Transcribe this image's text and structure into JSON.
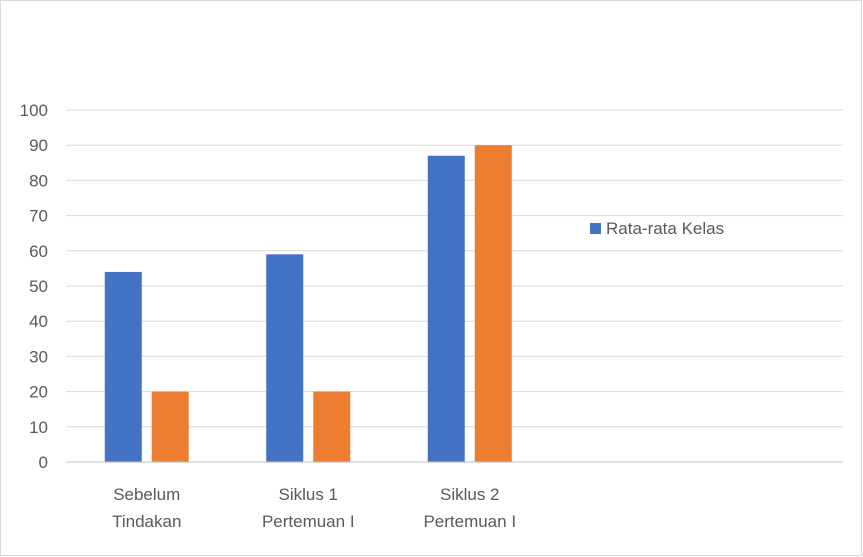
{
  "chart_data": {
    "type": "bar",
    "title": "",
    "xlabel": "",
    "ylabel": "",
    "categories": [
      [
        "Sebelum",
        "Tindakan"
      ],
      [
        "Siklus 1",
        "Pertemuan I"
      ],
      [
        "Siklus 2",
        "Pertemuan I"
      ]
    ],
    "series": [
      {
        "name": "Rata-rata Kelas",
        "values": [
          54,
          59,
          87
        ],
        "color": "#4472c4"
      },
      {
        "values": [
          20,
          20,
          90
        ],
        "color": "#ed7d31"
      }
    ],
    "ylim": [
      0,
      100
    ],
    "yticks": [
      0,
      10,
      20,
      30,
      40,
      50,
      60,
      70,
      80,
      90,
      100
    ],
    "grid": true,
    "legend": {
      "placement": "right",
      "entries": [
        "Rata-rata Kelas"
      ]
    },
    "colors": {
      "gridline": "#d9d9d9",
      "axis": "#bfbfbf",
      "text": "#595959",
      "border": "#d9d9d9"
    }
  }
}
